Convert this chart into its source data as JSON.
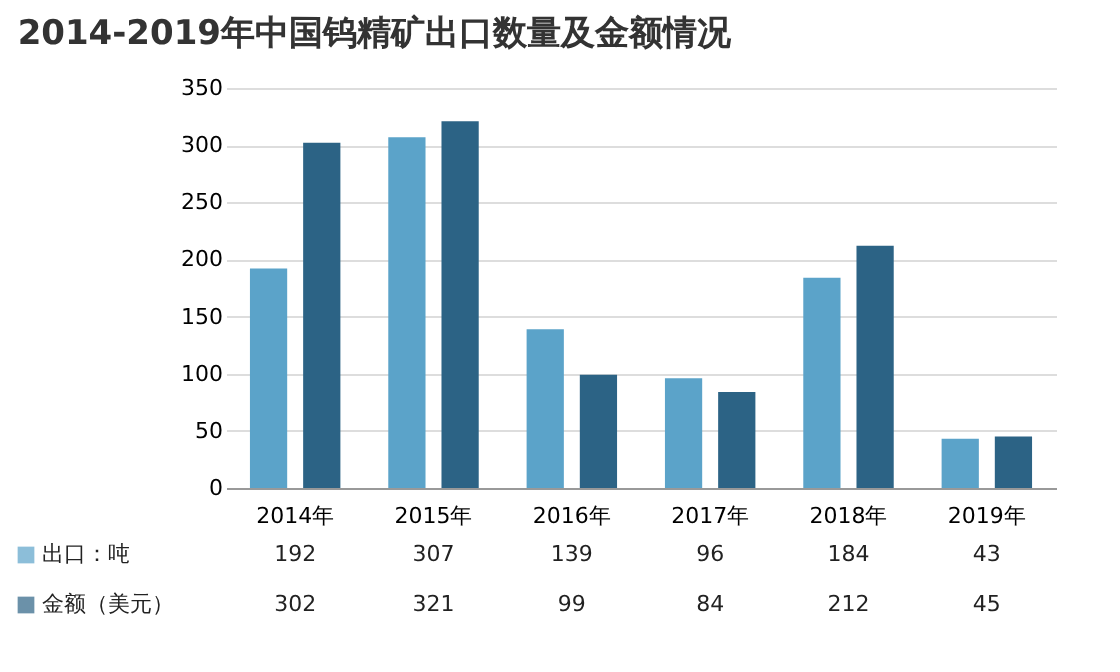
{
  "chart_data": {
    "type": "bar",
    "title": "2014-2019年中国钨精矿出口数量及金额情况",
    "categories": [
      "2014年",
      "2015年",
      "2016年",
      "2017年",
      "2018年",
      "2019年"
    ],
    "series": [
      {
        "name": "出口：吨",
        "color": "#5ba3c9",
        "values": [
          192,
          307,
          139,
          96,
          184,
          43
        ]
      },
      {
        "name": "金额（美元）",
        "color": "#2c6385",
        "values": [
          302,
          321,
          99,
          84,
          212,
          45
        ]
      }
    ],
    "ylim": [
      0,
      350
    ],
    "yticks": [
      0,
      50,
      100,
      150,
      200,
      250,
      300,
      350
    ],
    "grid": "y",
    "legend": "bottom",
    "data_labels": true
  }
}
